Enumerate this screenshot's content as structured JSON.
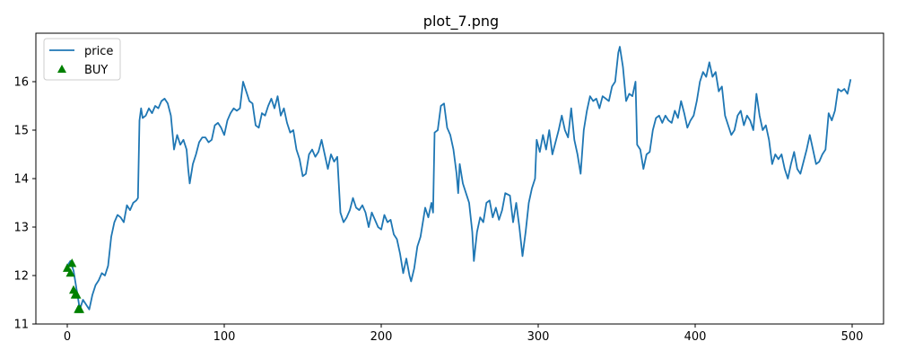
{
  "chart_data": {
    "type": "line",
    "title": "plot_7.png",
    "xlabel": "",
    "ylabel": "",
    "xlim": [
      -20,
      520
    ],
    "ylim": [
      11,
      17
    ],
    "x_ticks": [
      0,
      100,
      200,
      300,
      400,
      500
    ],
    "y_ticks": [
      11,
      12,
      13,
      14,
      15,
      16
    ],
    "x_tick_labels": [
      "0",
      "100",
      "200",
      "300",
      "400",
      "500"
    ],
    "y_tick_labels": [
      "11",
      "12",
      "13",
      "14",
      "15",
      "16"
    ],
    "grid": false,
    "legend": {
      "placement": "top-left",
      "entries": [
        {
          "label": "price",
          "marker": "line",
          "color": "#1f77b4"
        },
        {
          "label": "BUY",
          "marker": "triangle-up",
          "color": "#008000"
        }
      ]
    },
    "series": [
      {
        "name": "price",
        "color": "#1f77b4",
        "points": [
          [
            0,
            12.2
          ],
          [
            2,
            12.3
          ],
          [
            4,
            12.1
          ],
          [
            6,
            11.7
          ],
          [
            8,
            11.3
          ],
          [
            10,
            11.5
          ],
          [
            12,
            11.4
          ],
          [
            14,
            11.3
          ],
          [
            16,
            11.6
          ],
          [
            18,
            11.8
          ],
          [
            20,
            11.9
          ],
          [
            22,
            12.05
          ],
          [
            24,
            12.0
          ],
          [
            26,
            12.2
          ],
          [
            28,
            12.8
          ],
          [
            30,
            13.1
          ],
          [
            32,
            13.25
          ],
          [
            34,
            13.2
          ],
          [
            36,
            13.1
          ],
          [
            38,
            13.45
          ],
          [
            40,
            13.35
          ],
          [
            42,
            13.5
          ],
          [
            44,
            13.55
          ],
          [
            45,
            13.6
          ],
          [
            46,
            15.2
          ],
          [
            47,
            15.45
          ],
          [
            48,
            15.25
          ],
          [
            50,
            15.3
          ],
          [
            52,
            15.45
          ],
          [
            54,
            15.35
          ],
          [
            56,
            15.5
          ],
          [
            58,
            15.45
          ],
          [
            60,
            15.6
          ],
          [
            62,
            15.65
          ],
          [
            64,
            15.55
          ],
          [
            66,
            15.3
          ],
          [
            68,
            14.6
          ],
          [
            70,
            14.9
          ],
          [
            72,
            14.7
          ],
          [
            74,
            14.8
          ],
          [
            76,
            14.6
          ],
          [
            77,
            14.2
          ],
          [
            78,
            13.9
          ],
          [
            80,
            14.3
          ],
          [
            82,
            14.5
          ],
          [
            84,
            14.75
          ],
          [
            86,
            14.85
          ],
          [
            88,
            14.85
          ],
          [
            90,
            14.75
          ],
          [
            92,
            14.8
          ],
          [
            94,
            15.1
          ],
          [
            96,
            15.15
          ],
          [
            98,
            15.05
          ],
          [
            100,
            14.9
          ],
          [
            102,
            15.2
          ],
          [
            104,
            15.35
          ],
          [
            106,
            15.45
          ],
          [
            108,
            15.4
          ],
          [
            110,
            15.45
          ],
          [
            112,
            16.0
          ],
          [
            114,
            15.8
          ],
          [
            116,
            15.6
          ],
          [
            118,
            15.55
          ],
          [
            120,
            15.1
          ],
          [
            122,
            15.05
          ],
          [
            124,
            15.35
          ],
          [
            126,
            15.3
          ],
          [
            128,
            15.5
          ],
          [
            130,
            15.65
          ],
          [
            132,
            15.45
          ],
          [
            134,
            15.7
          ],
          [
            136,
            15.3
          ],
          [
            138,
            15.45
          ],
          [
            140,
            15.15
          ],
          [
            142,
            14.95
          ],
          [
            144,
            15.0
          ],
          [
            146,
            14.6
          ],
          [
            148,
            14.4
          ],
          [
            150,
            14.05
          ],
          [
            152,
            14.1
          ],
          [
            154,
            14.5
          ],
          [
            156,
            14.6
          ],
          [
            158,
            14.45
          ],
          [
            160,
            14.55
          ],
          [
            162,
            14.8
          ],
          [
            164,
            14.5
          ],
          [
            166,
            14.2
          ],
          [
            168,
            14.5
          ],
          [
            170,
            14.35
          ],
          [
            172,
            14.45
          ],
          [
            174,
            13.3
          ],
          [
            176,
            13.1
          ],
          [
            178,
            13.2
          ],
          [
            180,
            13.35
          ],
          [
            182,
            13.6
          ],
          [
            184,
            13.4
          ],
          [
            186,
            13.35
          ],
          [
            188,
            13.45
          ],
          [
            190,
            13.3
          ],
          [
            192,
            13.0
          ],
          [
            194,
            13.3
          ],
          [
            196,
            13.15
          ],
          [
            198,
            13.0
          ],
          [
            200,
            12.95
          ],
          [
            202,
            13.25
          ],
          [
            204,
            13.1
          ],
          [
            206,
            13.15
          ],
          [
            208,
            12.85
          ],
          [
            210,
            12.75
          ],
          [
            212,
            12.45
          ],
          [
            214,
            12.05
          ],
          [
            216,
            12.35
          ],
          [
            218,
            12.0
          ],
          [
            219,
            11.88
          ],
          [
            221,
            12.15
          ],
          [
            223,
            12.6
          ],
          [
            225,
            12.8
          ],
          [
            227,
            13.2
          ],
          [
            228,
            13.4
          ],
          [
            230,
            13.2
          ],
          [
            232,
            13.5
          ],
          [
            233,
            13.3
          ],
          [
            234,
            14.95
          ],
          [
            236,
            15.0
          ],
          [
            238,
            15.5
          ],
          [
            240,
            15.55
          ],
          [
            242,
            15.05
          ],
          [
            244,
            14.9
          ],
          [
            246,
            14.6
          ],
          [
            248,
            14.1
          ],
          [
            249,
            13.7
          ],
          [
            250,
            14.3
          ],
          [
            252,
            13.9
          ],
          [
            254,
            13.7
          ],
          [
            256,
            13.5
          ],
          [
            258,
            12.9
          ],
          [
            259,
            12.3
          ],
          [
            261,
            12.9
          ],
          [
            263,
            13.2
          ],
          [
            265,
            13.1
          ],
          [
            267,
            13.5
          ],
          [
            269,
            13.55
          ],
          [
            271,
            13.2
          ],
          [
            273,
            13.4
          ],
          [
            275,
            13.15
          ],
          [
            277,
            13.35
          ],
          [
            279,
            13.7
          ],
          [
            282,
            13.65
          ],
          [
            284,
            13.1
          ],
          [
            286,
            13.5
          ],
          [
            288,
            13.0
          ],
          [
            290,
            12.4
          ],
          [
            292,
            12.9
          ],
          [
            294,
            13.5
          ],
          [
            296,
            13.8
          ],
          [
            298,
            14.0
          ],
          [
            299,
            14.8
          ],
          [
            301,
            14.55
          ],
          [
            303,
            14.9
          ],
          [
            305,
            14.6
          ],
          [
            307,
            15.0
          ],
          [
            309,
            14.5
          ],
          [
            311,
            14.75
          ],
          [
            313,
            15.0
          ],
          [
            315,
            15.3
          ],
          [
            317,
            15.0
          ],
          [
            319,
            14.85
          ],
          [
            321,
            15.45
          ],
          [
            323,
            14.8
          ],
          [
            325,
            14.5
          ],
          [
            327,
            14.1
          ],
          [
            329,
            15.0
          ],
          [
            331,
            15.4
          ],
          [
            333,
            15.7
          ],
          [
            335,
            15.6
          ],
          [
            337,
            15.65
          ],
          [
            339,
            15.45
          ],
          [
            341,
            15.7
          ],
          [
            343,
            15.65
          ],
          [
            345,
            15.6
          ],
          [
            347,
            15.9
          ],
          [
            349,
            16.0
          ],
          [
            351,
            16.6
          ],
          [
            352,
            16.72
          ],
          [
            354,
            16.3
          ],
          [
            356,
            15.6
          ],
          [
            358,
            15.75
          ],
          [
            360,
            15.7
          ],
          [
            362,
            16.0
          ],
          [
            363,
            14.7
          ],
          [
            365,
            14.6
          ],
          [
            367,
            14.2
          ],
          [
            369,
            14.5
          ],
          [
            371,
            14.55
          ],
          [
            373,
            15.0
          ],
          [
            375,
            15.25
          ],
          [
            377,
            15.3
          ],
          [
            379,
            15.15
          ],
          [
            381,
            15.3
          ],
          [
            383,
            15.2
          ],
          [
            385,
            15.15
          ],
          [
            387,
            15.4
          ],
          [
            389,
            15.25
          ],
          [
            391,
            15.6
          ],
          [
            393,
            15.35
          ],
          [
            395,
            15.05
          ],
          [
            397,
            15.2
          ],
          [
            399,
            15.3
          ],
          [
            401,
            15.6
          ],
          [
            403,
            16.0
          ],
          [
            405,
            16.2
          ],
          [
            407,
            16.1
          ],
          [
            409,
            16.4
          ],
          [
            411,
            16.1
          ],
          [
            413,
            16.2
          ],
          [
            415,
            15.8
          ],
          [
            417,
            15.9
          ],
          [
            419,
            15.3
          ],
          [
            421,
            15.1
          ],
          [
            423,
            14.9
          ],
          [
            425,
            15.0
          ],
          [
            427,
            15.3
          ],
          [
            429,
            15.4
          ],
          [
            431,
            15.1
          ],
          [
            433,
            15.3
          ],
          [
            435,
            15.2
          ],
          [
            437,
            15.0
          ],
          [
            439,
            15.75
          ],
          [
            441,
            15.3
          ],
          [
            443,
            15.0
          ],
          [
            445,
            15.1
          ],
          [
            447,
            14.8
          ],
          [
            449,
            14.3
          ],
          [
            451,
            14.5
          ],
          [
            453,
            14.4
          ],
          [
            455,
            14.5
          ],
          [
            457,
            14.2
          ],
          [
            459,
            14.0
          ],
          [
            461,
            14.3
          ],
          [
            463,
            14.55
          ],
          [
            465,
            14.2
          ],
          [
            467,
            14.1
          ],
          [
            469,
            14.35
          ],
          [
            471,
            14.6
          ],
          [
            473,
            14.9
          ],
          [
            475,
            14.6
          ],
          [
            477,
            14.3
          ],
          [
            479,
            14.35
          ],
          [
            481,
            14.5
          ],
          [
            483,
            14.6
          ],
          [
            485,
            15.35
          ],
          [
            487,
            15.2
          ],
          [
            489,
            15.4
          ],
          [
            491,
            15.85
          ],
          [
            493,
            15.8
          ],
          [
            495,
            15.85
          ],
          [
            497,
            15.75
          ],
          [
            499,
            16.05
          ]
        ]
      },
      {
        "name": "BUY",
        "color": "#008000",
        "marker": "triangle-up",
        "points": [
          [
            0,
            12.15
          ],
          [
            2,
            12.05
          ],
          [
            3,
            12.25
          ],
          [
            4,
            11.7
          ],
          [
            5,
            11.6
          ],
          [
            6,
            11.6
          ],
          [
            7,
            11.3
          ],
          [
            8,
            11.3
          ]
        ]
      }
    ]
  }
}
